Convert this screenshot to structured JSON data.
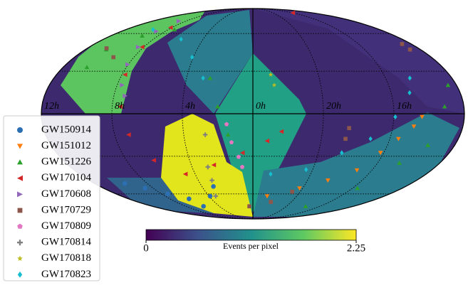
{
  "chart_data": {
    "type": "scatter",
    "projection": "mollweide",
    "xticks": [
      {
        "value": 12,
        "label": "12h"
      },
      {
        "value": 8,
        "label": "8h"
      },
      {
        "value": 4,
        "label": "4h"
      },
      {
        "value": 0,
        "label": "0h"
      },
      {
        "value": 20,
        "label": "20h"
      },
      {
        "value": 16,
        "label": "16h"
      }
    ],
    "dec_grid": [
      -60,
      -30,
      0,
      30,
      60
    ],
    "colorbar": {
      "label": "Events per pixel",
      "lim": [
        0,
        2.25
      ],
      "ticks": [
        0,
        2.25
      ]
    },
    "series": [
      {
        "name": "GW150914",
        "color": "#2c6fb3",
        "marker": "circle",
        "x": [
          9.7,
          8.66,
          7.46,
          6.16,
          5.9,
          3.9,
          3.1
        ],
        "values": [
          -51,
          -55,
          -60,
          -64.5,
          -72,
          -62,
          -53.5
        ]
      },
      {
        "name": "GW151012",
        "color": "#ff7f0e",
        "marker": "triangle-down",
        "x": [
          22.7,
          20.25,
          18.5,
          17.0,
          16.2,
          15.5,
          14.8,
          14.4
        ],
        "values": [
          -62,
          -55,
          -48.5,
          -40.5,
          -27.5,
          -17.5,
          -8.8,
          -2.2
        ]
      },
      {
        "name": "GW151226",
        "color": "#2ca02c",
        "marker": "triangle-up",
        "x": [
          10.5,
          10.5,
          9.35,
          7.4,
          2.58,
          2.0,
          1.44,
          17.7,
          15.6,
          14.6,
          13.6,
          13.1,
          12.5
        ],
        "values": [
          33,
          46.5,
          58,
          63.6,
          25,
          5,
          -14.6,
          -72,
          -55,
          -35,
          -22,
          5,
          20
        ]
      },
      {
        "name": "GW170104",
        "color": "#d62728",
        "marker": "triangle-left",
        "x": [
          16.0,
          8.15,
          8.13,
          7.82,
          7.55,
          7.2,
          6.28,
          4.68,
          2.55,
          0.65,
          23.17,
          22.37
        ],
        "values": [
          82,
          65.5,
          48.5,
          27.5,
          5,
          -14.6,
          -33,
          -43.5,
          -36.5,
          -27.5,
          -19,
          -12.4
        ]
      },
      {
        "name": "GW170608",
        "color": "#9467bd",
        "marker": "triangle-right",
        "x": [
          8.84,
          8.8,
          8.4,
          8.03,
          7.7,
          7.35
        ],
        "values": [
          72,
          62,
          48.5,
          35,
          20,
          12.4
        ]
      },
      {
        "name": "GW170729",
        "color": "#8c564b",
        "marker": "square",
        "x": [
          10.6,
          9.38,
          12.7,
          12.75,
          22.13,
          20.68,
          0.42,
          18.49,
          18.59
        ],
        "values": [
          47.5,
          40.5,
          51,
          46.5,
          -67.5,
          -58,
          -72,
          -10,
          -17.5
        ]
      },
      {
        "name": "GW170809",
        "color": "#e377c2",
        "marker": "pentagon",
        "x": [
          1.5,
          1.26,
          0.89,
          0.7
        ],
        "values": [
          -7.3,
          -20,
          -30.5,
          -38
        ]
      },
      {
        "name": "GW170814",
        "color": "#7f7f7f",
        "marker": "plus",
        "x": [
          2.76,
          2.96,
          3.0,
          3.39
        ],
        "values": [
          -14.6,
          -38,
          -48.5,
          -62
        ]
      },
      {
        "name": "GW170818",
        "color": "#bcbd22",
        "marker": "star",
        "x": [
          22.91,
          22.74
        ],
        "values": [
          27.5,
          20
        ]
      },
      {
        "name": "GW170823",
        "color": "#17becf",
        "marker": "diamond",
        "x": [
          9.43,
          5.77,
          4.09,
          3.0,
          22.77,
          20.44,
          18.57,
          17.13,
          15.92,
          14.93,
          14.54
        ],
        "values": [
          63.6,
          55,
          40.5,
          25,
          -43.5,
          -40,
          -27.5,
          -17.5,
          -2.2,
          14.6,
          25
        ]
      }
    ]
  }
}
